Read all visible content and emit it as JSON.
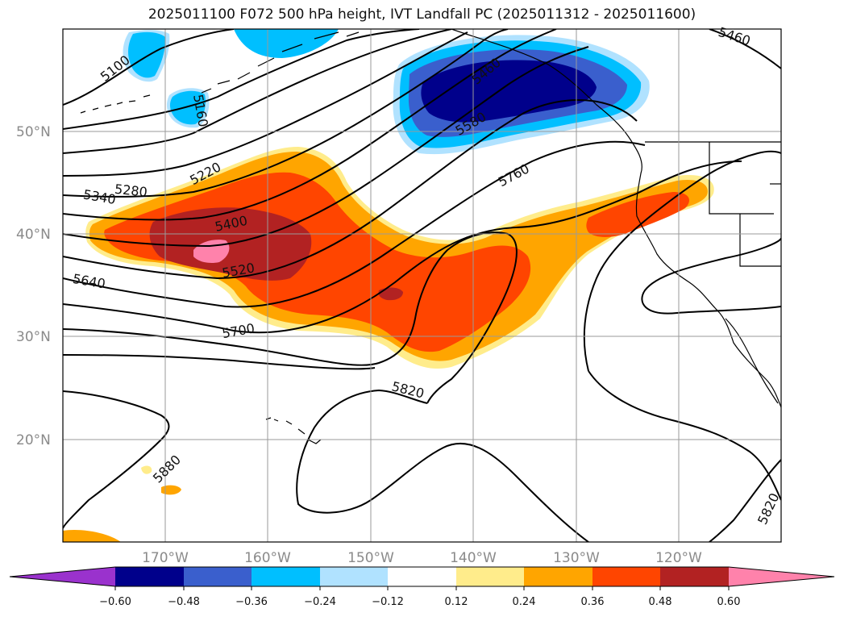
{
  "title": "2025011100 F072 500 hPa height, IVT Landfall PC (2025011312 - 2025011600)",
  "lat_labels": [
    "50°N",
    "40°N",
    "30°N",
    "20°N"
  ],
  "lon_labels": [
    "170°W",
    "160°W",
    "150°W",
    "140°W",
    "130°W",
    "120°W"
  ],
  "contour_labels": [
    "5100",
    "5160",
    "5220",
    "5280",
    "5340",
    "5400",
    "5460",
    "5460",
    "5580",
    "5520",
    "5640",
    "5700",
    "5760",
    "5820",
    "5880",
    "5820"
  ],
  "colorbar": {
    "tick_labels": [
      "−0.60",
      "−0.48",
      "−0.36",
      "−0.24",
      "−0.12",
      "0.12",
      "0.24",
      "0.36",
      "0.48",
      "0.60"
    ],
    "colors": [
      "#9a32cd",
      "#00008b",
      "#3a5fcd",
      "#00bfff",
      "#b0e2ff",
      "#ffffff",
      "#ffec8b",
      "#ffa500",
      "#ff4500",
      "#b22222",
      "#ff82ab"
    ]
  },
  "map": {
    "extent_lon": [
      -180,
      -110
    ],
    "extent_lat": [
      10,
      60
    ],
    "field_colors": {
      "neg_light": "#b0e2ff",
      "neg_1": "#00bfff",
      "neg_2": "#3a5fcd",
      "neg_3": "#00008b",
      "pos_light": "#ffec8b",
      "pos_1": "#ffa500",
      "pos_2": "#ff4500",
      "pos_3": "#b22222",
      "pos_4": "#ff82ab"
    }
  }
}
